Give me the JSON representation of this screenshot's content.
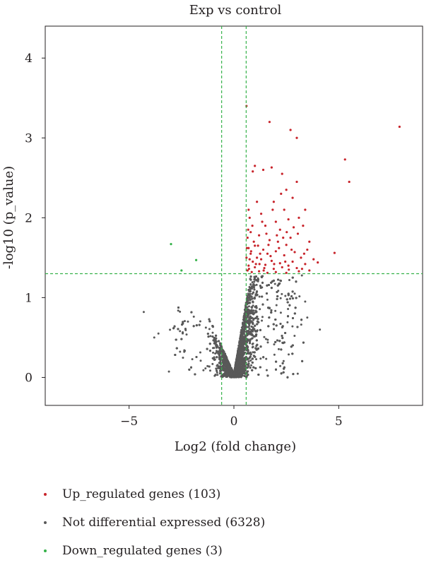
{
  "chart_data": {
    "type": "scatter",
    "title": "Exp vs control",
    "xlabel": "Log2 (fold change)",
    "ylabel": "-log10 (p_value)",
    "xlim": [
      -9,
      9
    ],
    "ylim": [
      -0.35,
      4.4
    ],
    "xticks": [
      -5,
      0,
      5
    ],
    "yticks": [
      0,
      1,
      2,
      3,
      4
    ],
    "x_tick_labels": [
      "−5",
      "0",
      "5"
    ],
    "y_tick_labels": [
      "0",
      "1",
      "2",
      "3",
      "4"
    ],
    "grid": false,
    "thresholds": {
      "log2fc": [
        -0.585,
        0.585
      ],
      "neg_log10_p": 1.3
    },
    "colors": {
      "up": "#c8242b",
      "not": "#595959",
      "down": "#36b24a",
      "threshold_line": "#36b24a"
    },
    "series": [
      {
        "name": "Up_regulated genes (103)",
        "count": 103,
        "points": [
          [
            0.6,
            3.4
          ],
          [
            1.7,
            3.2
          ],
          [
            2.7,
            3.1
          ],
          [
            3.0,
            3.0
          ],
          [
            7.9,
            3.14
          ],
          [
            5.3,
            2.73
          ],
          [
            5.5,
            2.45
          ],
          [
            1.0,
            2.65
          ],
          [
            1.8,
            2.63
          ],
          [
            1.4,
            2.6
          ],
          [
            2.3,
            2.55
          ],
          [
            0.9,
            2.58
          ],
          [
            2.8,
            2.25
          ],
          [
            3.0,
            2.45
          ],
          [
            2.5,
            2.35
          ],
          [
            1.1,
            2.2
          ],
          [
            1.9,
            2.2
          ],
          [
            2.4,
            2.1
          ],
          [
            3.1,
            2.0
          ],
          [
            3.4,
            2.1
          ],
          [
            0.7,
            2.1
          ],
          [
            0.75,
            2.0
          ],
          [
            1.3,
            2.05
          ],
          [
            2.0,
            1.95
          ],
          [
            2.6,
            1.98
          ],
          [
            0.8,
            1.82
          ],
          [
            1.5,
            1.9
          ],
          [
            2.2,
            1.85
          ],
          [
            3.3,
            1.9
          ],
          [
            0.65,
            1.75
          ],
          [
            1.2,
            1.78
          ],
          [
            1.7,
            1.72
          ],
          [
            2.7,
            1.75
          ],
          [
            0.7,
            1.62
          ],
          [
            1.0,
            1.65
          ],
          [
            1.4,
            1.6
          ],
          [
            2.1,
            1.7
          ],
          [
            2.5,
            1.66
          ],
          [
            3.6,
            1.7
          ],
          [
            0.8,
            1.55
          ],
          [
            1.1,
            1.5
          ],
          [
            1.6,
            1.55
          ],
          [
            2.0,
            1.58
          ],
          [
            2.4,
            1.53
          ],
          [
            2.9,
            1.57
          ],
          [
            3.5,
            1.6
          ],
          [
            4.8,
            1.56
          ],
          [
            0.6,
            1.5
          ],
          [
            0.9,
            1.45
          ],
          [
            1.3,
            1.48
          ],
          [
            1.8,
            1.46
          ],
          [
            2.2,
            1.43
          ],
          [
            2.8,
            1.45
          ],
          [
            3.2,
            1.5
          ],
          [
            3.8,
            1.48
          ],
          [
            0.7,
            1.4
          ],
          [
            1.0,
            1.38
          ],
          [
            1.5,
            1.41
          ],
          [
            1.9,
            1.36
          ],
          [
            2.3,
            1.38
          ],
          [
            2.6,
            1.4
          ],
          [
            3.0,
            1.37
          ],
          [
            3.4,
            1.42
          ],
          [
            4.0,
            1.44
          ],
          [
            0.65,
            1.34
          ],
          [
            0.85,
            1.32
          ],
          [
            1.2,
            1.33
          ],
          [
            1.6,
            1.31
          ],
          [
            2.0,
            1.32
          ],
          [
            2.5,
            1.31
          ],
          [
            3.1,
            1.33
          ],
          [
            3.6,
            1.34
          ],
          [
            0.75,
            1.48
          ],
          [
            1.05,
            1.42
          ],
          [
            1.25,
            1.55
          ],
          [
            1.45,
            1.37
          ],
          [
            1.75,
            1.52
          ],
          [
            2.15,
            1.62
          ],
          [
            2.45,
            1.45
          ],
          [
            2.75,
            1.6
          ],
          [
            3.05,
            1.8
          ],
          [
            3.35,
            1.55
          ],
          [
            0.95,
            1.7
          ],
          [
            1.55,
            1.8
          ],
          [
            2.05,
            1.78
          ],
          [
            2.85,
            1.88
          ],
          [
            1.35,
            1.95
          ],
          [
            0.88,
            1.9
          ],
          [
            0.62,
            1.62
          ],
          [
            1.15,
            1.65
          ],
          [
            1.65,
            1.66
          ],
          [
            2.35,
            1.75
          ],
          [
            0.72,
            1.36
          ],
          [
            1.42,
            1.34
          ],
          [
            1.92,
            1.42
          ],
          [
            2.62,
            1.35
          ],
          [
            3.25,
            1.36
          ],
          [
            0.82,
            1.58
          ],
          [
            1.22,
            1.42
          ],
          [
            2.52,
            1.82
          ],
          [
            0.68,
            1.85
          ],
          [
            1.85,
            2.1
          ],
          [
            2.25,
            2.3
          ]
        ]
      },
      {
        "name": "Not differential expressed (6328)",
        "count": 6328
      },
      {
        "name": "Down_regulated genes (3)",
        "count": 3,
        "points": [
          [
            -3.0,
            1.67
          ],
          [
            -1.8,
            1.47
          ],
          [
            -2.5,
            1.34
          ]
        ]
      }
    ]
  }
}
